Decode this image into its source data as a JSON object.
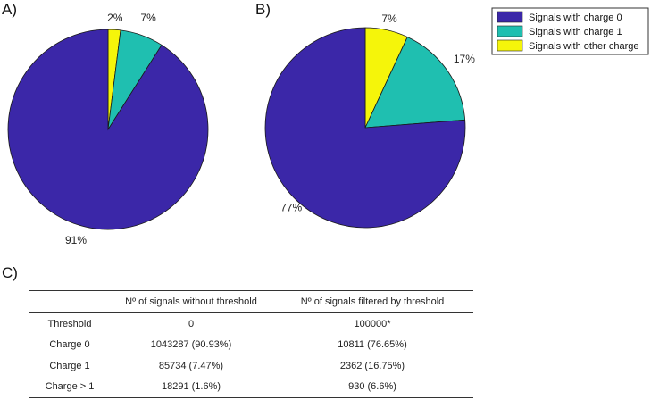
{
  "chart_data": [
    {
      "type": "pie",
      "panel": "A)",
      "slices": [
        {
          "name": "Signals with other charge",
          "value": 2,
          "label": "2%",
          "color": "#f5f50a"
        },
        {
          "name": "Signals with charge 1",
          "value": 7,
          "label": "7%",
          "color": "#1fbfb0"
        },
        {
          "name": "Signals with charge 0",
          "value": 91,
          "label": "91%",
          "color": "#3b27a8"
        }
      ]
    },
    {
      "type": "pie",
      "panel": "B)",
      "slices": [
        {
          "name": "Signals with other charge",
          "value": 7,
          "label": "7%",
          "color": "#f5f50a"
        },
        {
          "name": "Signals with charge 1",
          "value": 17,
          "label": "17%",
          "color": "#1fbfb0"
        },
        {
          "name": "Signals with charge 0",
          "value": 77,
          "label": "77%",
          "color": "#3b27a8"
        }
      ]
    }
  ],
  "legend": {
    "placement": "top-right",
    "entries": [
      {
        "label": "Signals with charge 0",
        "color": "#3b27a8"
      },
      {
        "label": "Signals with charge 1",
        "color": "#1fbfb0"
      },
      {
        "label": "Signals with other charge",
        "color": "#f5f50a"
      }
    ]
  },
  "table": {
    "panel": "C)",
    "headers": [
      "",
      "Nº of signals without threshold",
      "Nº of signals filtered by threshold"
    ],
    "rows": [
      [
        "Threshold",
        "0",
        "100000*"
      ],
      [
        "Charge 0",
        "1043287  (90.93%)",
        "10811  (76.65%)"
      ],
      [
        "Charge 1",
        "85734  (7.47%)",
        "2362  (16.75%)"
      ],
      [
        "Charge > 1",
        "18291  (1.6%)",
        "930  (6.6%)"
      ]
    ]
  }
}
